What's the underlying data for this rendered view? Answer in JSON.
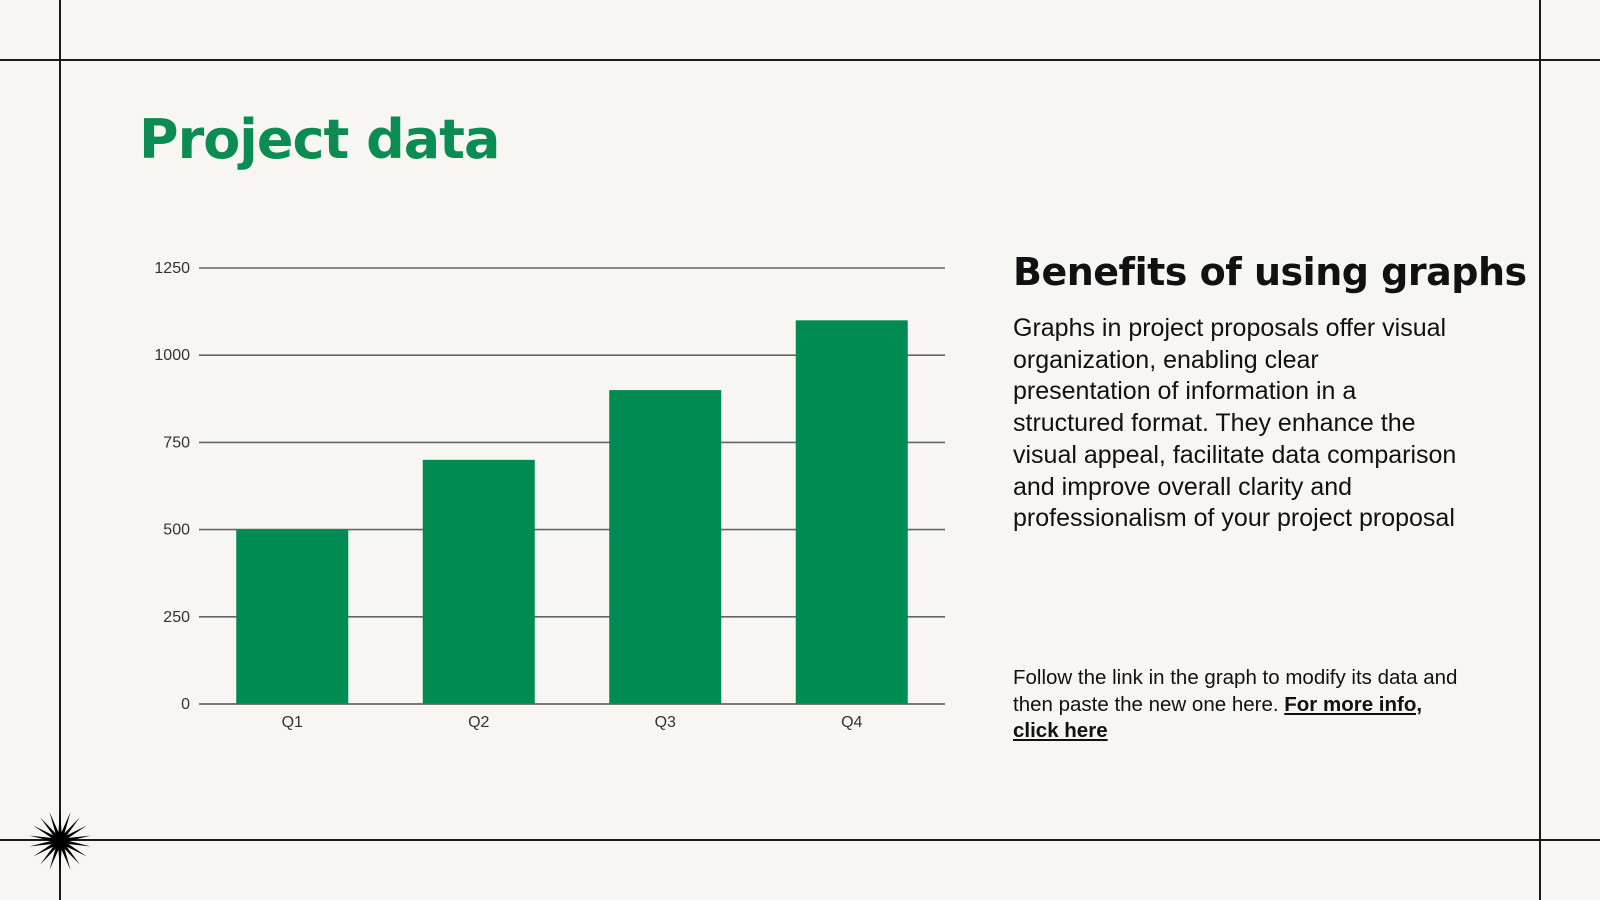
{
  "title": "Project data",
  "side": {
    "heading": "Benefits of using graphs",
    "body": "Graphs in project proposals offer visual organization, enabling clear presentation of information in a structured format. They enhance the visual appeal, facilitate data comparison and improve overall clarity and professionalism of your project proposal",
    "note": "Follow the link in the graph to modify its data and then paste the new one here.",
    "link": "For more info, click here"
  },
  "colors": {
    "accent": "#0b8c52",
    "bar": "#008b52",
    "background": "#f7f6f2"
  },
  "decoration_icon": "starburst-icon",
  "chart_data": {
    "type": "bar",
    "categories": [
      "Q1",
      "Q2",
      "Q3",
      "Q4"
    ],
    "values": [
      500,
      700,
      900,
      1100
    ],
    "ylim": [
      0,
      1250
    ],
    "yticks": [
      0,
      250,
      500,
      750,
      1000,
      1250
    ],
    "grid": true,
    "title": "",
    "xlabel": "",
    "ylabel": ""
  }
}
